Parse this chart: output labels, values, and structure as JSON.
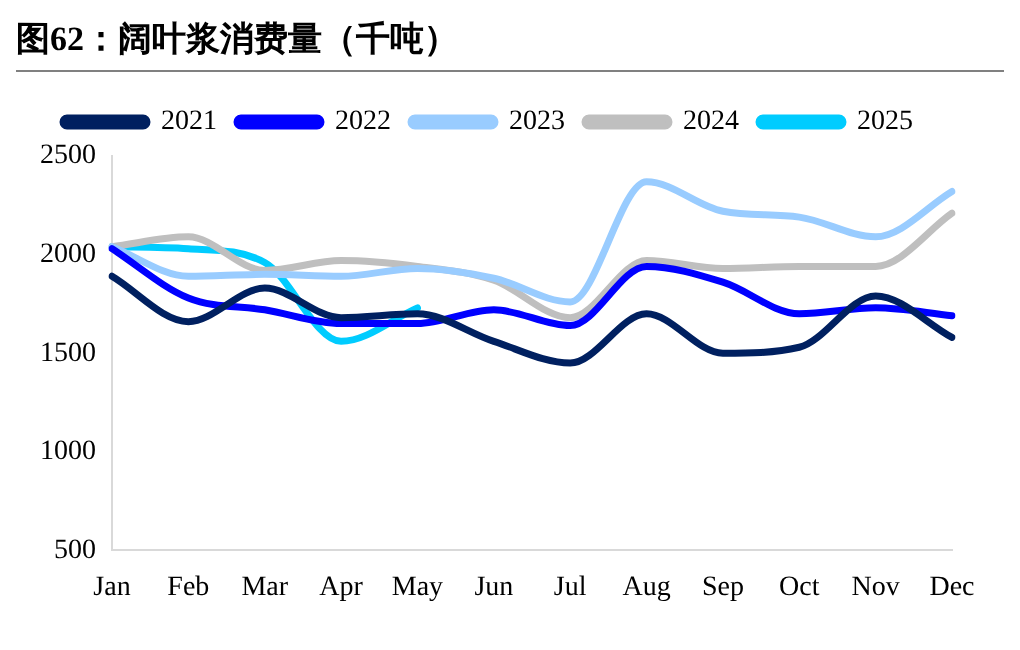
{
  "chart_data": {
    "type": "line",
    "title": "图62：阔叶浆消费量（千吨）",
    "categories": [
      "Jan",
      "Feb",
      "Mar",
      "Apr",
      "May",
      "Jun",
      "Jul",
      "Aug",
      "Sep",
      "Oct",
      "Nov",
      "Dec"
    ],
    "series": [
      {
        "name": "2021",
        "color": "#002060",
        "values": [
          1890,
          1660,
          1830,
          1680,
          1700,
          1560,
          1450,
          1700,
          1500,
          1530,
          1790,
          1580
        ]
      },
      {
        "name": "2022",
        "color": "#0000ff",
        "values": [
          2030,
          1780,
          1720,
          1650,
          1650,
          1720,
          1640,
          1940,
          1860,
          1700,
          1730,
          1690
        ]
      },
      {
        "name": "2023",
        "color": "#99ccff",
        "values": [
          2040,
          1890,
          1900,
          1890,
          1930,
          1880,
          1760,
          2370,
          2220,
          2190,
          2090,
          2320
        ]
      },
      {
        "name": "2024",
        "color": "#bfbfbf",
        "values": [
          2040,
          2090,
          1920,
          1970,
          1940,
          1870,
          1680,
          1970,
          1930,
          1940,
          1940,
          2210
        ]
      },
      {
        "name": "2025",
        "color": "#00ccff",
        "values": [
          2040,
          2030,
          1960,
          1560,
          1730,
          null,
          null,
          null,
          null,
          null,
          null,
          null
        ]
      }
    ],
    "ylim": [
      500,
      2500
    ],
    "yticks": [
      500,
      1000,
      1500,
      2000,
      2500
    ],
    "grid": false,
    "legend": "top",
    "marker": "none",
    "line_style": "solid"
  }
}
